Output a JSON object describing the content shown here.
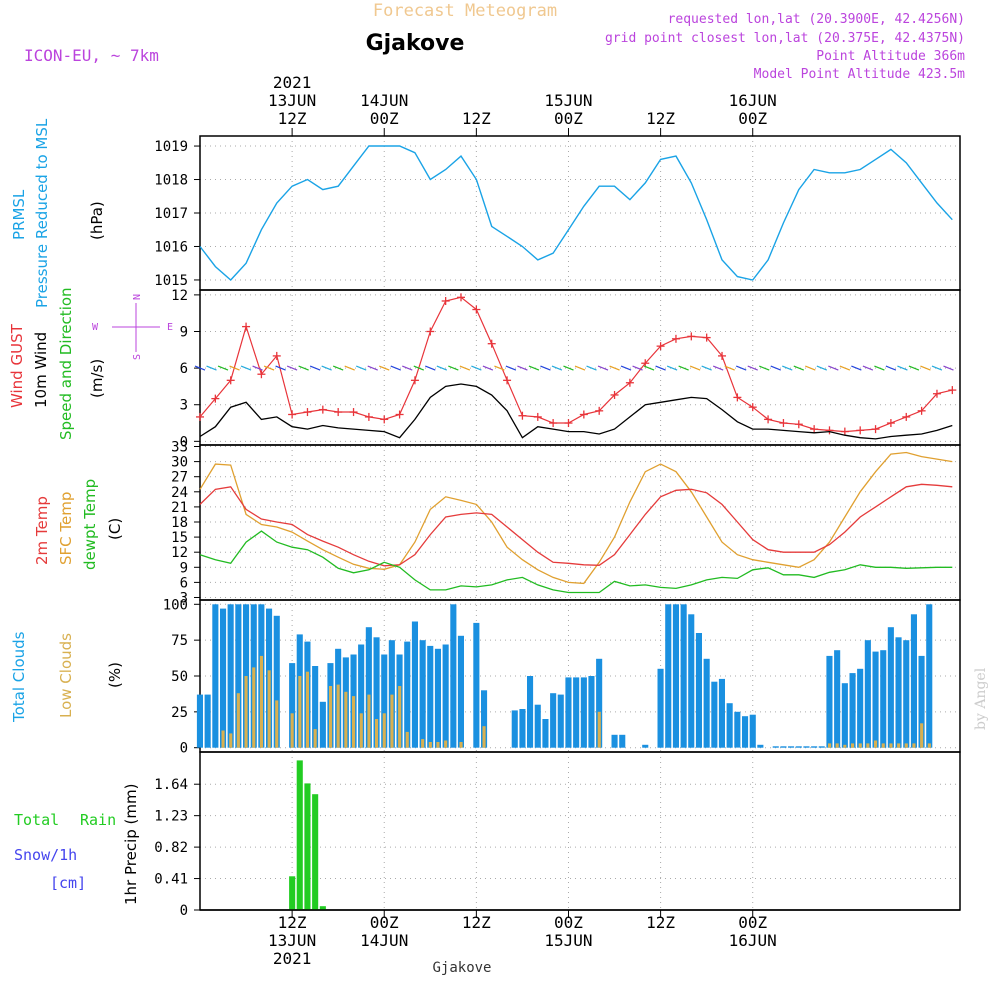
{
  "header": {
    "top_title": "Forecast Meteogram",
    "location": "Gjakove",
    "model": "ICON-EU, ~ 7km",
    "requested": "requested lon,lat (20.3900E, 42.4256N)",
    "grid_point": "grid point closest lon,lat (20.375E, 42.4375N)",
    "point_alt": "Point Altitude 366m",
    "model_alt": "Model Point Altitude 423.5m",
    "watermark": "by Angel"
  },
  "time_axis": {
    "start_hour": 0,
    "end_hour": 99,
    "ticks": [
      {
        "h": 12,
        "top": [
          "2021",
          "13JUN",
          "12Z"
        ],
        "bottom": [
          "12Z",
          "13JUN",
          "2021"
        ]
      },
      {
        "h": 24,
        "top": [
          "14JUN",
          "00Z"
        ],
        "bottom": [
          "00Z",
          "14JUN"
        ]
      },
      {
        "h": 36,
        "top": [
          "12Z"
        ],
        "bottom": [
          "12Z"
        ]
      },
      {
        "h": 48,
        "top": [
          "15JUN",
          "00Z"
        ],
        "bottom": [
          "00Z",
          "15JUN"
        ]
      },
      {
        "h": 60,
        "top": [
          "12Z"
        ],
        "bottom": [
          "12Z"
        ]
      },
      {
        "h": 72,
        "top": [
          "16JUN",
          "00Z"
        ],
        "bottom": [
          "00Z",
          "16JUN"
        ]
      }
    ],
    "footer_label": "Gjakove"
  },
  "colors": {
    "pressure": "#1aa3e6",
    "gust": "#e8343a",
    "wind": "#000000",
    "temp2m": "#e53b3b",
    "sfc": "#e0a030",
    "dewpt": "#22bb22",
    "total_clouds": "#1a90e0",
    "low_clouds": "#d8b050",
    "rain": "#22cc22",
    "snow": "#4444ee",
    "purple": "#bb44dd",
    "title_orange": "#f0c890"
  },
  "panels": {
    "pressure": {
      "labels": [
        "PRMSL",
        "Pressure Reduced to MSL"
      ],
      "unit": "(hPa)",
      "ylim": [
        1014.7,
        1019.3
      ],
      "ticks": [
        "1015",
        "1016",
        "1017",
        "1018",
        "1019"
      ]
    },
    "wind": {
      "labels": [
        "Wind GUST",
        "10m Wind",
        "Speed and Direction"
      ],
      "unit": "(m/s)",
      "ylim": [
        -0.3,
        12.4
      ],
      "ticks": [
        "0",
        "3",
        "6",
        "9",
        "12"
      ],
      "compass": {
        "n": "N",
        "w": "W",
        "e": "E",
        "s": "S"
      }
    },
    "temp": {
      "labels": [
        "2m Temp",
        "SFC Temp",
        "dewpt Temp"
      ],
      "unit": "(C)",
      "ylim": [
        2.5,
        33.3
      ],
      "ticks": [
        "3",
        "6",
        "9",
        "12",
        "15",
        "18",
        "21",
        "24",
        "27",
        "30",
        "33"
      ]
    },
    "clouds": {
      "labels": [
        "Total Clouds",
        "Low Clouds"
      ],
      "unit": "(%)",
      "ylim": [
        -3,
        103
      ],
      "ticks": [
        "0",
        "25",
        "50",
        "75",
        "100"
      ]
    },
    "precip": {
      "labels": [
        "Total",
        "Rain",
        "Snow/1h",
        "[cm]"
      ],
      "unit": "1hr Precip (mm)",
      "ylim": [
        0,
        2.06
      ],
      "ticks": [
        "0",
        "0.41",
        "0.82",
        "1.23",
        "1.64"
      ]
    }
  },
  "chart_data": [
    {
      "type": "line",
      "title": "Pressure Reduced to MSL",
      "ylabel": "hPa",
      "x_hours": [
        0,
        2,
        4,
        6,
        8,
        10,
        12,
        14,
        16,
        18,
        20,
        22,
        24,
        26,
        28,
        30,
        32,
        34,
        36,
        38,
        40,
        42,
        44,
        46,
        48,
        50,
        52,
        54,
        56,
        58,
        60,
        62,
        64,
        66,
        68,
        70,
        72,
        74,
        76,
        78,
        80,
        82,
        84,
        86,
        88,
        90,
        92,
        94,
        96,
        98
      ],
      "series": [
        {
          "name": "PRMSL",
          "values": [
            1016.0,
            1015.4,
            1015.0,
            1015.5,
            1016.5,
            1017.3,
            1017.8,
            1018.0,
            1017.7,
            1017.8,
            1018.4,
            1019.0,
            1019.0,
            1019.0,
            1018.8,
            1018.0,
            1018.3,
            1018.7,
            1018.0,
            1016.6,
            1016.3,
            1016.0,
            1015.6,
            1015.8,
            1016.5,
            1017.2,
            1017.8,
            1017.8,
            1017.4,
            1017.9,
            1018.6,
            1018.7,
            1017.9,
            1016.8,
            1015.6,
            1015.1,
            1015.0,
            1015.6,
            1016.7,
            1017.7,
            1018.3,
            1018.2,
            1018.2,
            1018.3,
            1018.6,
            1018.9,
            1018.5,
            1017.9,
            1017.3,
            1016.8
          ]
        }
      ]
    },
    {
      "type": "line",
      "title": "Wind GUST / 10m Wind",
      "ylabel": "m/s",
      "x_hours": [
        0,
        2,
        4,
        6,
        8,
        10,
        12,
        14,
        16,
        18,
        20,
        22,
        24,
        26,
        28,
        30,
        32,
        34,
        36,
        38,
        40,
        42,
        44,
        46,
        48,
        50,
        52,
        54,
        56,
        58,
        60,
        62,
        64,
        66,
        68,
        70,
        72,
        74,
        76,
        78,
        80,
        82,
        84,
        86,
        88,
        90,
        92,
        94,
        96,
        98
      ],
      "series": [
        {
          "name": "Wind GUST",
          "values": [
            2.0,
            3.5,
            5.0,
            9.4,
            5.5,
            7.0,
            2.2,
            2.4,
            2.6,
            2.4,
            2.4,
            2.0,
            1.8,
            2.2,
            5.0,
            9.0,
            11.5,
            11.8,
            10.8,
            8.0,
            5.0,
            2.1,
            2.0,
            1.5,
            1.5,
            2.2,
            2.5,
            3.8,
            4.8,
            6.4,
            7.8,
            8.4,
            8.6,
            8.5,
            7.0,
            3.6,
            2.8,
            1.8,
            1.5,
            1.4,
            1.0,
            0.9,
            0.8,
            0.9,
            1.0,
            1.5,
            2.0,
            2.5,
            3.9,
            4.2
          ]
        },
        {
          "name": "10m Wind",
          "values": [
            0.4,
            1.2,
            2.8,
            3.2,
            1.8,
            2.0,
            1.2,
            1.0,
            1.3,
            1.1,
            1.0,
            0.9,
            0.8,
            0.3,
            1.8,
            3.6,
            4.5,
            4.7,
            4.5,
            3.8,
            2.5,
            0.3,
            1.2,
            1.0,
            0.8,
            0.8,
            0.6,
            1.0,
            2.0,
            3.0,
            3.2,
            3.4,
            3.6,
            3.5,
            2.6,
            1.6,
            1.0,
            1.0,
            0.9,
            0.8,
            0.7,
            0.8,
            0.5,
            0.3,
            0.2,
            0.4,
            0.5,
            0.6,
            0.9,
            1.3
          ]
        }
      ]
    },
    {
      "type": "line",
      "title": "Temperatures",
      "ylabel": "C",
      "x_hours": [
        0,
        2,
        4,
        6,
        8,
        10,
        12,
        14,
        16,
        18,
        20,
        22,
        24,
        26,
        28,
        30,
        32,
        34,
        36,
        38,
        40,
        42,
        44,
        46,
        48,
        50,
        52,
        54,
        56,
        58,
        60,
        62,
        64,
        66,
        68,
        70,
        72,
        74,
        76,
        78,
        80,
        82,
        84,
        86,
        88,
        90,
        92,
        94,
        96,
        98
      ],
      "series": [
        {
          "name": "2m Temp",
          "values": [
            21.5,
            24.5,
            25.0,
            20.5,
            18.6,
            18.0,
            17.5,
            15.5,
            14.2,
            13.0,
            11.5,
            10.2,
            9.3,
            9.5,
            11.5,
            15.5,
            19.0,
            19.5,
            19.8,
            19.5,
            17.0,
            14.5,
            12.0,
            10.0,
            9.8,
            9.5,
            9.4,
            11.5,
            15.5,
            19.5,
            23.0,
            24.3,
            24.5,
            23.8,
            21.5,
            18.0,
            14.5,
            12.5,
            12.0,
            12.0,
            12.0,
            13.5,
            16.0,
            19.0,
            21.0,
            23.0,
            25.0,
            25.5,
            25.3,
            25.0
          ]
        },
        {
          "name": "SFC Temp",
          "values": [
            24.5,
            29.5,
            29.3,
            19.5,
            17.5,
            17.0,
            16.0,
            14.2,
            12.5,
            11.0,
            9.6,
            8.8,
            8.6,
            9.5,
            14.0,
            20.5,
            23.0,
            22.3,
            21.5,
            18.0,
            13.0,
            10.5,
            8.5,
            7.0,
            6.0,
            5.8,
            10.0,
            15.0,
            22.0,
            28.0,
            29.5,
            28.0,
            24.0,
            19.0,
            14.0,
            11.5,
            10.5,
            10.0,
            9.5,
            9.0,
            10.5,
            14.0,
            19.0,
            24.0,
            28.0,
            31.5,
            31.8,
            31.0,
            30.5,
            30.0
          ]
        },
        {
          "name": "dewpt Temp",
          "values": [
            11.5,
            10.5,
            9.8,
            14.0,
            16.2,
            14.0,
            13.0,
            12.5,
            11.0,
            8.8,
            7.9,
            8.5,
            10.0,
            9.0,
            6.5,
            4.5,
            4.5,
            5.3,
            5.1,
            5.5,
            6.5,
            7.0,
            5.5,
            4.5,
            4.0,
            4.0,
            4.0,
            6.2,
            5.3,
            5.5,
            5.0,
            4.8,
            5.5,
            6.5,
            7.0,
            6.8,
            8.5,
            8.9,
            7.5,
            7.5,
            7.0,
            8.0,
            8.5,
            9.5,
            9.0,
            9.0,
            8.8,
            8.9,
            9.0,
            9.0
          ]
        }
      ]
    },
    {
      "type": "bar",
      "title": "Clouds",
      "ylabel": "%",
      "x_hours": [
        0,
        1,
        2,
        3,
        4,
        5,
        6,
        7,
        8,
        9,
        10,
        11,
        12,
        13,
        14,
        15,
        16,
        17,
        18,
        19,
        20,
        21,
        22,
        23,
        24,
        25,
        26,
        27,
        28,
        29,
        30,
        31,
        32,
        33,
        34,
        35,
        36,
        37,
        38,
        39,
        40,
        41,
        42,
        43,
        44,
        45,
        46,
        47,
        48,
        49,
        50,
        51,
        52,
        53,
        54,
        55,
        56,
        57,
        58,
        59,
        60,
        61,
        62,
        63,
        64,
        65,
        66,
        67,
        68,
        69,
        70,
        71,
        72,
        73,
        74,
        75,
        76,
        77,
        78,
        79,
        80,
        81,
        82,
        83,
        84,
        85,
        86,
        87,
        88,
        89,
        90,
        91,
        92,
        93,
        94,
        95,
        96,
        97,
        98,
        99
      ],
      "series": [
        {
          "name": "Total Clouds",
          "values": [
            37,
            37,
            100,
            97,
            100,
            100,
            100,
            100,
            100,
            97,
            92,
            0,
            59,
            79,
            74,
            57,
            32,
            59,
            69,
            63,
            65,
            72,
            84,
            77,
            65,
            75,
            65,
            74,
            88,
            75,
            71,
            69,
            72,
            100,
            78,
            0,
            87,
            40,
            0,
            0,
            0,
            26,
            27,
            50,
            30,
            20,
            38,
            37,
            49,
            49,
            49,
            50,
            62,
            0,
            9,
            9,
            0,
            0,
            2,
            0,
            55,
            100,
            100,
            100,
            93,
            80,
            62,
            46,
            48,
            31,
            25,
            22,
            23,
            2,
            0,
            1,
            1,
            1,
            1,
            1,
            1,
            1,
            64,
            68,
            45,
            52,
            55,
            75,
            67,
            68,
            84,
            77,
            75,
            93,
            64,
            100,
            0,
            0,
            0,
            0
          ]
        },
        {
          "name": "Low Clouds",
          "values": [
            0,
            0,
            0,
            12,
            10,
            38,
            50,
            56,
            64,
            54,
            33,
            0,
            24,
            50,
            53,
            13,
            0,
            43,
            44,
            39,
            36,
            24,
            37,
            20,
            24,
            37,
            43,
            11,
            0,
            6,
            4,
            4,
            5,
            0,
            4,
            0,
            0,
            15,
            0,
            0,
            0,
            0,
            0,
            0,
            0,
            0,
            0,
            0,
            0,
            0,
            0,
            0,
            25,
            0,
            0,
            0,
            0,
            0,
            0,
            0,
            0,
            0,
            0,
            0,
            0,
            0,
            0,
            0,
            0,
            0,
            0,
            0,
            0,
            0,
            0,
            0,
            0,
            0,
            0,
            0,
            0,
            0,
            3,
            3,
            2,
            3,
            3,
            3,
            5,
            3,
            3,
            3,
            3,
            3,
            17,
            3,
            0,
            0,
            0,
            0
          ]
        }
      ]
    },
    {
      "type": "bar",
      "title": "1hr Precip",
      "ylabel": "mm",
      "x_hours": [
        12,
        13,
        14,
        15,
        16
      ],
      "series": [
        {
          "name": "Total Rain",
          "values": [
            0.44,
            1.95,
            1.65,
            1.51,
            0.05
          ]
        }
      ]
    }
  ]
}
